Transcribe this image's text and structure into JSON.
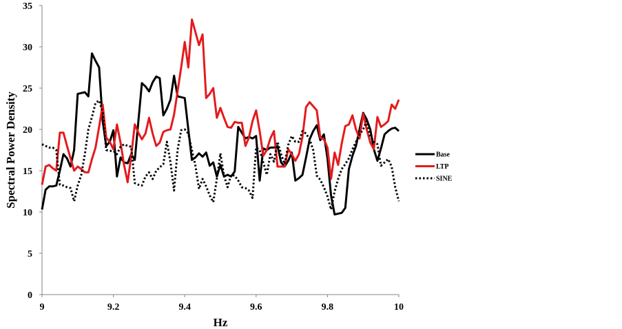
{
  "chart_data": {
    "type": "line",
    "title": "",
    "xlabel": "Hz",
    "ylabel": "Spectral Power Density",
    "xlim": [
      9,
      10
    ],
    "ylim": [
      0,
      35
    ],
    "xticks": [
      "9",
      "9.2",
      "9.4",
      "9.6",
      "9.8",
      "10"
    ],
    "yticks": [
      "0",
      "5",
      "10",
      "15",
      "20",
      "25",
      "30",
      "35"
    ],
    "grid": false,
    "legend_position": "right",
    "x": [
      9.0,
      9.01,
      9.02,
      9.03,
      9.04,
      9.05,
      9.06,
      9.07,
      9.08,
      9.09,
      9.1,
      9.11,
      9.12,
      9.13,
      9.14,
      9.15,
      9.16,
      9.17,
      9.18,
      9.19,
      9.2,
      9.21,
      9.22,
      9.23,
      9.24,
      9.25,
      9.26,
      9.27,
      9.28,
      9.29,
      9.3,
      9.31,
      9.32,
      9.33,
      9.34,
      9.35,
      9.36,
      9.37,
      9.38,
      9.39,
      9.4,
      9.41,
      9.42,
      9.43,
      9.44,
      9.45,
      9.46,
      9.47,
      9.48,
      9.49,
      9.5,
      9.51,
      9.52,
      9.53,
      9.54,
      9.55,
      9.56,
      9.57,
      9.58,
      9.59,
      9.6,
      9.61,
      9.62,
      9.63,
      9.64,
      9.65,
      9.66,
      9.67,
      9.68,
      9.69,
      9.7,
      9.71,
      9.72,
      9.73,
      9.74,
      9.75,
      9.76,
      9.77,
      9.78,
      9.79,
      9.8,
      9.81,
      9.82,
      9.83,
      9.84,
      9.85,
      9.86,
      9.87,
      9.88,
      9.89,
      9.9,
      9.91,
      9.92,
      9.93,
      9.94,
      9.95,
      9.96,
      9.97,
      9.98,
      9.99,
      10.0
    ],
    "series": [
      {
        "name": "Base",
        "color": "#000000",
        "style": "solid",
        "values": [
          10.3,
          12.7,
          13.1,
          13.1,
          13.2,
          15.0,
          17.0,
          16.5,
          15.5,
          17.5,
          24.3,
          24.4,
          24.5,
          24.0,
          29.2,
          28.3,
          27.5,
          21.0,
          18.0,
          18.5,
          19.9,
          14.3,
          16.6,
          16.0,
          15.9,
          17.0,
          16.3,
          21.0,
          25.6,
          25.2,
          24.6,
          25.7,
          26.4,
          26.2,
          21.7,
          22.5,
          23.6,
          26.5,
          24.0,
          23.9,
          23.8,
          20.0,
          16.3,
          16.6,
          17.1,
          16.7,
          17.2,
          15.6,
          16.0,
          14.3,
          15.7,
          14.3,
          14.5,
          14.3,
          14.9,
          20.3,
          19.6,
          18.9,
          19.1,
          18.9,
          19.2,
          13.8,
          17.7,
          17.5,
          17.8,
          17.8,
          18.0,
          16.0,
          15.5,
          16.2,
          17.2,
          13.8,
          14.1,
          14.5,
          16.6,
          18.8,
          19.8,
          20.5,
          18.7,
          19.4,
          16.5,
          12.0,
          9.7,
          9.8,
          9.9,
          10.5,
          15.2,
          16.8,
          18.0,
          20.0,
          22.0,
          21.2,
          20.0,
          17.6,
          16.2,
          17.7,
          19.4,
          19.8,
          20.1,
          20.2,
          19.8
        ]
      },
      {
        "name": "LTP",
        "color": "#e41a1c",
        "style": "solid",
        "values": [
          13.3,
          15.5,
          15.7,
          15.3,
          15.0,
          19.6,
          19.6,
          18.0,
          16.5,
          15.0,
          15.5,
          15.2,
          14.8,
          14.8,
          16.4,
          17.8,
          20.3,
          23.0,
          19.0,
          18.5,
          17.6,
          20.6,
          18.4,
          15.7,
          13.6,
          16.8,
          20.6,
          19.6,
          18.8,
          19.5,
          21.4,
          19.5,
          18.0,
          18.4,
          19.7,
          19.9,
          20.0,
          21.8,
          24.6,
          27.5,
          30.6,
          27.5,
          33.3,
          31.8,
          30.2,
          31.5,
          23.8,
          24.3,
          25.0,
          21.4,
          22.6,
          21.4,
          20.3,
          20.2,
          20.9,
          20.8,
          20.8,
          18.0,
          19.0,
          21.0,
          22.3,
          19.8,
          16.8,
          17.5,
          18.9,
          19.8,
          15.5,
          15.5,
          15.5,
          17.6,
          17.0,
          16.2,
          17.0,
          19.1,
          22.7,
          23.3,
          22.8,
          22.3,
          19.0,
          18.8,
          17.8,
          14.0,
          17.2,
          15.7,
          18.3,
          20.4,
          20.6,
          21.7,
          20.0,
          18.9,
          21.9,
          20.0,
          18.4,
          17.6,
          21.5,
          20.3,
          20.6,
          21.0,
          23.0,
          22.5,
          23.6
        ]
      },
      {
        "name": "SINE",
        "color": "#000000",
        "style": "dotted",
        "values": [
          18.2,
          18.0,
          17.8,
          17.8,
          17.5,
          13.3,
          13.2,
          13.0,
          12.9,
          11.3,
          13.2,
          14.5,
          17.0,
          20.0,
          21.5,
          23.2,
          23.5,
          22.1,
          17.5,
          17.4,
          17.4,
          17.0,
          17.9,
          18.2,
          18.0,
          17.9,
          13.5,
          13.3,
          13.2,
          14.3,
          14.8,
          14.0,
          15.0,
          15.4,
          15.8,
          18.5,
          16.0,
          12.6,
          17.5,
          19.9,
          20.0,
          19.5,
          17.5,
          15.6,
          12.8,
          14.0,
          13.1,
          12.0,
          11.2,
          14.0,
          17.1,
          14.4,
          13.0,
          14.5,
          14.4,
          13.8,
          13.0,
          12.9,
          12.6,
          11.7,
          17.8,
          17.5,
          16.0,
          14.5,
          17.0,
          16.1,
          18.5,
          17.0,
          15.8,
          18.1,
          19.2,
          18.5,
          18.5,
          19.8,
          19.5,
          18.8,
          17.5,
          14.4,
          13.9,
          13.0,
          11.9,
          10.3,
          12.5,
          14.0,
          15.2,
          15.8,
          16.5,
          17.6,
          18.5,
          19.4,
          20.0,
          21.0,
          19.2,
          18.5,
          18.2,
          15.6,
          16.0,
          16.4,
          15.5,
          13.0,
          11.3
        ]
      }
    ]
  }
}
